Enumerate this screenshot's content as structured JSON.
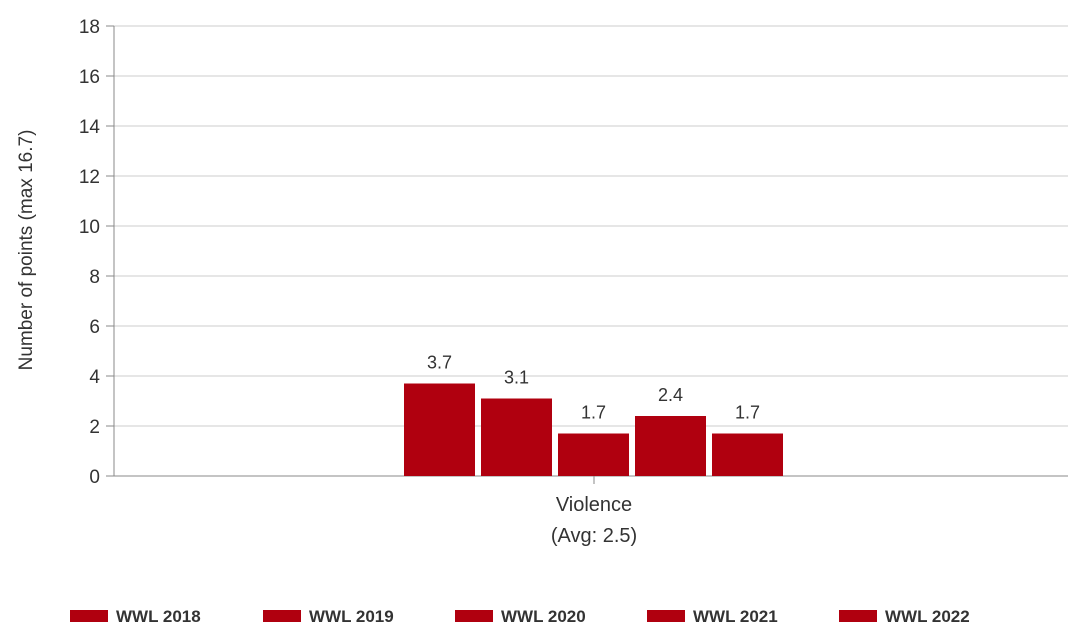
{
  "chart_data": {
    "type": "bar",
    "categories": [
      "Violence"
    ],
    "category_sublabels": [
      "(Avg: 2.5)"
    ],
    "series": [
      {
        "name": "WWL 2018",
        "values": [
          3.7
        ]
      },
      {
        "name": "WWL 2019",
        "values": [
          3.1
        ]
      },
      {
        "name": "WWL 2020",
        "values": [
          1.7
        ]
      },
      {
        "name": "WWL 2021",
        "values": [
          2.4
        ]
      },
      {
        "name": "WWL 2022",
        "values": [
          1.7
        ]
      }
    ],
    "data_labels": [
      "3.7",
      "3.1",
      "1.7",
      "2.4",
      "1.7"
    ],
    "title": "",
    "xlabel": "",
    "ylabel": "Number of points (max 16.7)",
    "ylim": [
      0,
      18
    ],
    "yticks": [
      0,
      2,
      4,
      6,
      8,
      10,
      12,
      14,
      16,
      18
    ],
    "grid": true,
    "legend_position": "bottom",
    "bar_color": "#b0000f",
    "grid_color": "#cccccc",
    "axis_color": "#888888"
  }
}
